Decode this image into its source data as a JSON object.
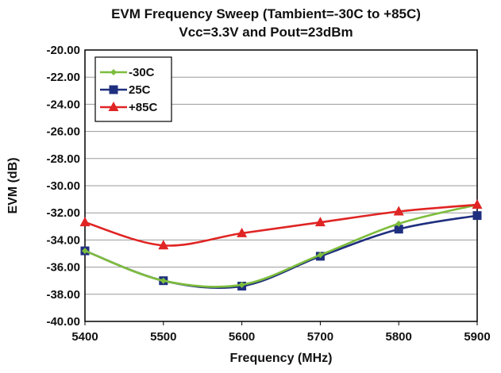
{
  "chart_data": {
    "type": "line",
    "title": "EVM Frequency Sweep (Tambient=-30C to +85C)",
    "subtitle": "Vcc=3.3V and Pout=23dBm",
    "xlabel": "Frequency (MHz)",
    "ylabel": "EVM (dB)",
    "xlim": [
      5400,
      5900
    ],
    "ylim": [
      -40,
      -20
    ],
    "x_ticks": [
      "5400",
      "5500",
      "5600",
      "5700",
      "5800",
      "5900"
    ],
    "y_ticks": [
      "-20.00",
      "-22.00",
      "-24.00",
      "-26.00",
      "-28.00",
      "-30.00",
      "-32.00",
      "-34.00",
      "-36.00",
      "-38.00",
      "-40.00"
    ],
    "grid": "horizontal",
    "legend_position": "top-left",
    "x": [
      5400,
      5500,
      5600,
      5700,
      5800,
      5900
    ],
    "series": [
      {
        "name": "-30C",
        "values": [
          -34.8,
          -37.0,
          -37.3,
          -35.1,
          -32.8,
          -31.4
        ],
        "color": "#7dbd3c",
        "marker": "diamond"
      },
      {
        "name": "25C",
        "values": [
          -34.8,
          -37.0,
          -37.4,
          -35.2,
          -33.2,
          -32.2
        ],
        "color": "#1f2f7f",
        "marker": "square"
      },
      {
        "name": "+85C",
        "values": [
          -32.7,
          -34.4,
          -33.5,
          -32.7,
          -31.9,
          -31.4
        ],
        "color": "#e02424",
        "marker": "triangle"
      }
    ]
  }
}
